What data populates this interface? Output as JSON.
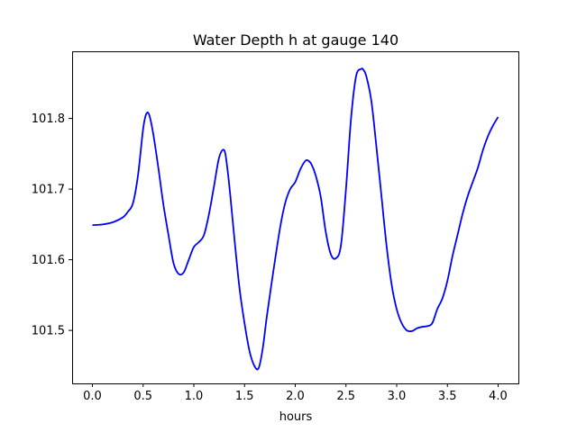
{
  "chart_data": {
    "type": "line",
    "title": "Water Depth h at gauge 140",
    "xlabel": "hours",
    "ylabel": "",
    "xlim": [
      -0.2,
      4.2
    ],
    "ylim": [
      101.425,
      101.895
    ],
    "xticks": [
      0.0,
      0.5,
      1.0,
      1.5,
      2.0,
      2.5,
      3.0,
      3.5,
      4.0
    ],
    "xtick_labels": [
      "0.0",
      "0.5",
      "1.0",
      "1.5",
      "2.0",
      "2.5",
      "3.0",
      "3.5",
      "4.0"
    ],
    "yticks": [
      101.5,
      101.6,
      101.7,
      101.8
    ],
    "ytick_labels": [
      "101.5",
      "101.6",
      "101.7",
      "101.8"
    ],
    "grid": false,
    "series": [
      {
        "color": "#0000ff",
        "x": [
          0.0,
          0.1,
          0.2,
          0.3,
          0.35,
          0.4,
          0.45,
          0.5,
          0.53,
          0.56,
          0.6,
          0.65,
          0.7,
          0.75,
          0.8,
          0.85,
          0.9,
          0.95,
          1.0,
          1.05,
          1.1,
          1.15,
          1.2,
          1.25,
          1.3,
          1.33,
          1.36,
          1.4,
          1.45,
          1.5,
          1.55,
          1.6,
          1.64,
          1.68,
          1.72,
          1.78,
          1.85,
          1.9,
          1.95,
          2.0,
          2.05,
          2.1,
          2.13,
          2.16,
          2.2,
          2.25,
          2.3,
          2.35,
          2.4,
          2.45,
          2.5,
          2.55,
          2.6,
          2.65,
          2.67,
          2.7,
          2.75,
          2.8,
          2.85,
          2.9,
          2.95,
          3.0,
          3.05,
          3.1,
          3.15,
          3.2,
          3.25,
          3.3,
          3.35,
          3.4,
          3.45,
          3.5,
          3.55,
          3.6,
          3.65,
          3.7,
          3.75,
          3.8,
          3.85,
          3.9,
          3.95,
          4.0
        ],
        "y": [
          101.649,
          101.65,
          101.653,
          101.66,
          101.668,
          101.68,
          101.72,
          101.785,
          101.806,
          101.805,
          101.778,
          101.73,
          101.678,
          101.635,
          101.595,
          101.58,
          101.582,
          101.6,
          101.618,
          101.625,
          101.635,
          101.665,
          101.705,
          101.745,
          101.755,
          101.73,
          101.69,
          101.63,
          101.56,
          101.51,
          101.47,
          101.449,
          101.447,
          101.475,
          101.52,
          101.58,
          101.645,
          101.68,
          101.7,
          101.71,
          101.728,
          101.74,
          101.74,
          101.735,
          101.72,
          101.69,
          101.64,
          101.608,
          101.602,
          101.62,
          101.7,
          101.8,
          101.86,
          101.87,
          101.869,
          101.86,
          101.825,
          101.76,
          101.69,
          101.62,
          101.565,
          101.53,
          101.51,
          101.5,
          101.499,
          101.503,
          101.505,
          101.506,
          101.51,
          101.53,
          101.545,
          101.57,
          101.605,
          101.635,
          101.665,
          101.69,
          101.71,
          101.73,
          101.755,
          101.775,
          101.79,
          101.802
        ]
      }
    ]
  }
}
